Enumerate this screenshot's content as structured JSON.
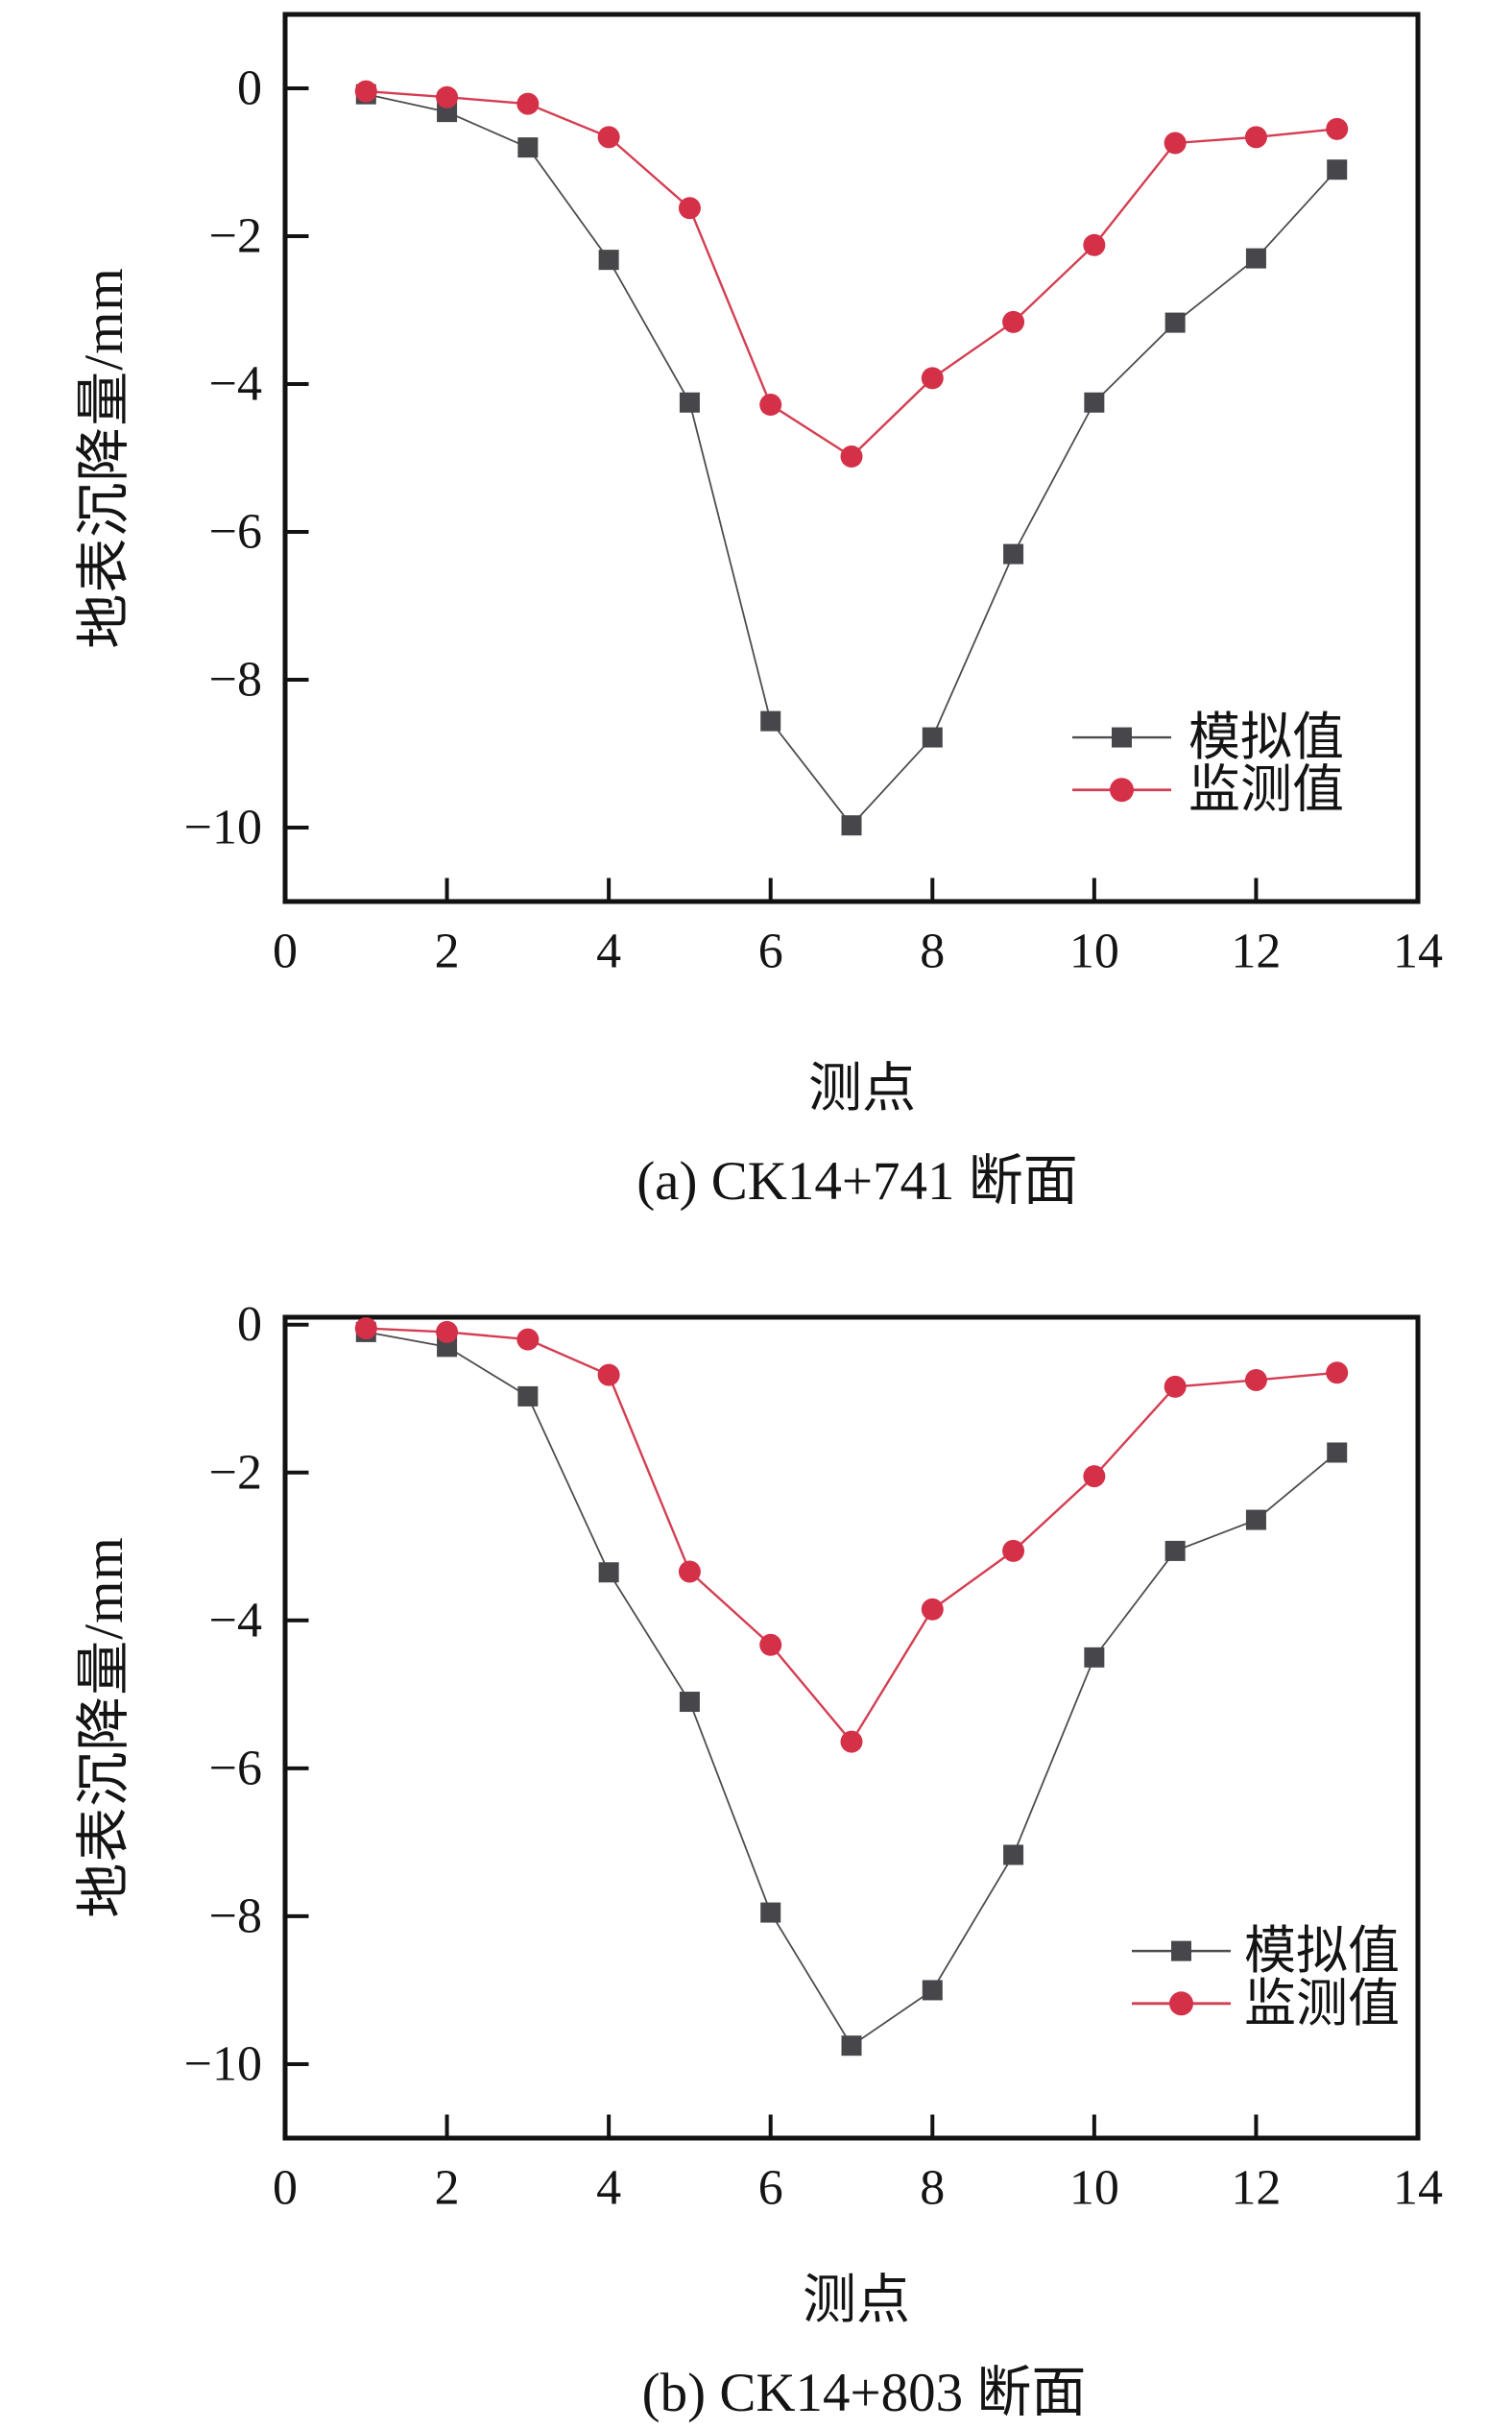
{
  "page": {
    "background": "#ffffff"
  },
  "colors": {
    "simulated_marker": "#47474b",
    "simulated_line": "#4d4d50",
    "monitored_marker": "#d43148",
    "monitored_line": "#d43e52",
    "axis": "#121212",
    "text": "#141414"
  },
  "chart_data": [
    {
      "type": "line",
      "panel": "a",
      "caption": "(a) CK14+741 断面",
      "xlabel": "测点",
      "ylabel": "地表沉降量/mm",
      "x": [
        1,
        2,
        3,
        4,
        5,
        6,
        7,
        8,
        9,
        10,
        11,
        12,
        13
      ],
      "series": [
        {
          "name": "模拟值",
          "marker": "square",
          "color": "#47474b",
          "values": [
            -0.08,
            -0.32,
            -0.8,
            -2.32,
            -4.25,
            -8.56,
            -9.97,
            -8.78,
            -6.3,
            -4.25,
            -3.17,
            -2.3,
            -1.1
          ]
        },
        {
          "name": "监测值",
          "marker": "circle",
          "color": "#d43148",
          "values": [
            -0.04,
            -0.12,
            -0.21,
            -0.66,
            -1.62,
            -4.28,
            -4.98,
            -3.92,
            -3.16,
            -2.12,
            -0.74,
            -0.66,
            -0.55
          ]
        }
      ],
      "xlim": [
        0,
        14
      ],
      "ylim": [
        -11.0,
        1.0
      ],
      "xticks": [
        0,
        2,
        4,
        6,
        8,
        10,
        12,
        14
      ],
      "yticks": [
        0,
        -2,
        -4,
        -6,
        -8,
        -10
      ],
      "grid": false,
      "legend_position": "lower-right-inside"
    },
    {
      "type": "line",
      "panel": "b",
      "caption": "(b) CK14+803 断面",
      "xlabel": "测点",
      "ylabel": "地表沉降量/mm",
      "x": [
        1,
        2,
        3,
        4,
        5,
        6,
        7,
        8,
        9,
        10,
        11,
        12,
        13
      ],
      "series": [
        {
          "name": "模拟值",
          "marker": "square",
          "color": "#47474b",
          "values": [
            -0.1,
            -0.3,
            -0.97,
            -3.35,
            -5.1,
            -7.95,
            -9.75,
            -9.0,
            -7.17,
            -4.5,
            -3.06,
            -2.64,
            -1.73
          ]
        },
        {
          "name": "监测值",
          "marker": "circle",
          "color": "#d43148",
          "values": [
            -0.05,
            -0.1,
            -0.2,
            -0.68,
            -3.34,
            -4.33,
            -5.64,
            -3.85,
            -3.06,
            -2.05,
            -0.84,
            -0.75,
            -0.65
          ]
        }
      ],
      "xlim": [
        0,
        14
      ],
      "ylim": [
        -11.0,
        0.1
      ],
      "xticks": [
        0,
        2,
        4,
        6,
        8,
        10,
        12,
        14
      ],
      "yticks": [
        0,
        -2,
        -4,
        -6,
        -8,
        -10
      ],
      "grid": false,
      "legend_position": "lower-right-inside"
    }
  ]
}
